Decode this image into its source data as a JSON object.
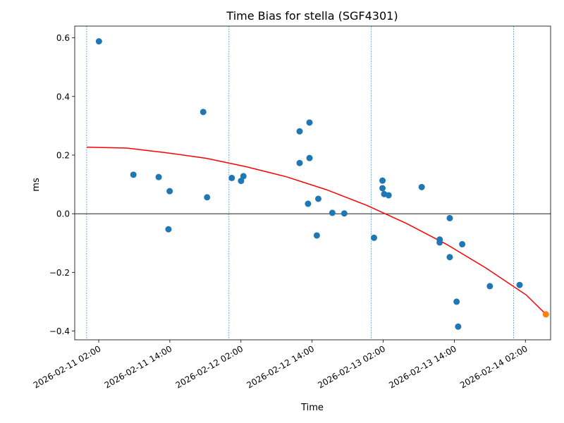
{
  "chart_data": {
    "type": "scatter",
    "title": "Time Bias for stella (SGF4301)",
    "xlabel": "Time",
    "ylabel": "ms",
    "xlim": [
      "2026-02-10T21:57",
      "2026-02-14T06:15"
    ],
    "ylim": [
      -0.43,
      0.64
    ],
    "x_ticks": [
      {
        "t": "2026-02-11T02:00",
        "label": "2026-02-11 02:00"
      },
      {
        "t": "2026-02-11T14:00",
        "label": "2026-02-11 14:00"
      },
      {
        "t": "2026-02-12T02:00",
        "label": "2026-02-12 02:00"
      },
      {
        "t": "2026-02-12T14:00",
        "label": "2026-02-12 14:00"
      },
      {
        "t": "2026-02-13T02:00",
        "label": "2026-02-13 02:00"
      },
      {
        "t": "2026-02-13T14:00",
        "label": "2026-02-13 14:00"
      },
      {
        "t": "2026-02-14T02:00",
        "label": "2026-02-14 02:00"
      }
    ],
    "y_ticks": [
      {
        "v": -0.4,
        "label": "−0.4"
      },
      {
        "v": -0.2,
        "label": "−0.2"
      },
      {
        "v": 0.0,
        "label": "0.0"
      },
      {
        "v": 0.2,
        "label": "0.2"
      },
      {
        "v": 0.4,
        "label": "0.4"
      },
      {
        "v": 0.6,
        "label": "0.6"
      }
    ],
    "vlines": [
      "2026-02-10T23:58",
      "2026-02-11T23:59",
      "2026-02-13T00:00",
      "2026-02-14T00:01"
    ],
    "hline": 0.0,
    "series": [
      {
        "type": "scatter",
        "color": "#1f77b4",
        "points": [
          {
            "t": "2026-02-11T02:02",
            "y": 0.588
          },
          {
            "t": "2026-02-11T07:51",
            "y": 0.133
          },
          {
            "t": "2026-02-11T12:07",
            "y": 0.125
          },
          {
            "t": "2026-02-11T13:46",
            "y": -0.053
          },
          {
            "t": "2026-02-11T13:58",
            "y": 0.077
          },
          {
            "t": "2026-02-11T19:38",
            "y": 0.347
          },
          {
            "t": "2026-02-11T20:17",
            "y": 0.056
          },
          {
            "t": "2026-02-12T00:27",
            "y": 0.122
          },
          {
            "t": "2026-02-12T02:01",
            "y": 0.112
          },
          {
            "t": "2026-02-12T02:25",
            "y": 0.128
          },
          {
            "t": "2026-02-12T11:54",
            "y": 0.281
          },
          {
            "t": "2026-02-12T11:54",
            "y": 0.173
          },
          {
            "t": "2026-02-12T13:19",
            "y": 0.034
          },
          {
            "t": "2026-02-12T13:34",
            "y": 0.311
          },
          {
            "t": "2026-02-12T13:34",
            "y": 0.19
          },
          {
            "t": "2026-02-12T14:48",
            "y": -0.074
          },
          {
            "t": "2026-02-12T15:03",
            "y": 0.051
          },
          {
            "t": "2026-02-12T17:25",
            "y": 0.003
          },
          {
            "t": "2026-02-12T19:26",
            "y": 0.001
          },
          {
            "t": "2026-02-13T00:27",
            "y": -0.082
          },
          {
            "t": "2026-02-13T01:53",
            "y": 0.113
          },
          {
            "t": "2026-02-13T01:53",
            "y": 0.087
          },
          {
            "t": "2026-02-13T02:10",
            "y": 0.067
          },
          {
            "t": "2026-02-13T02:55",
            "y": 0.063
          },
          {
            "t": "2026-02-13T08:30",
            "y": 0.091
          },
          {
            "t": "2026-02-13T11:32",
            "y": -0.088
          },
          {
            "t": "2026-02-13T11:32",
            "y": -0.098
          },
          {
            "t": "2026-02-13T13:14",
            "y": -0.015
          },
          {
            "t": "2026-02-13T13:14",
            "y": -0.148
          },
          {
            "t": "2026-02-13T14:23",
            "y": -0.3
          },
          {
            "t": "2026-02-13T14:39",
            "y": -0.385
          },
          {
            "t": "2026-02-13T15:20",
            "y": -0.104
          },
          {
            "t": "2026-02-13T20:00",
            "y": -0.247
          },
          {
            "t": "2026-02-14T01:01",
            "y": -0.243
          }
        ]
      },
      {
        "type": "scatter",
        "color": "#ff7f0e",
        "points": [
          {
            "t": "2026-02-14T05:27",
            "y": -0.343
          }
        ]
      },
      {
        "type": "line",
        "color": "#ff0000",
        "points": [
          {
            "t": "2026-02-10T23:59",
            "y": 0.227
          },
          {
            "t": "2026-02-11T06:43",
            "y": 0.224
          },
          {
            "t": "2026-02-11T13:28",
            "y": 0.208
          },
          {
            "t": "2026-02-11T20:12",
            "y": 0.189
          },
          {
            "t": "2026-02-12T02:57",
            "y": 0.16
          },
          {
            "t": "2026-02-12T09:41",
            "y": 0.126
          },
          {
            "t": "2026-02-12T16:26",
            "y": 0.082
          },
          {
            "t": "2026-02-12T23:10",
            "y": 0.029
          },
          {
            "t": "2026-02-13T05:55",
            "y": -0.033
          },
          {
            "t": "2026-02-13T12:39",
            "y": -0.104
          },
          {
            "t": "2026-02-13T19:24",
            "y": -0.186
          },
          {
            "t": "2026-02-14T02:08",
            "y": -0.277
          },
          {
            "t": "2026-02-14T05:27",
            "y": -0.343
          }
        ]
      }
    ]
  }
}
